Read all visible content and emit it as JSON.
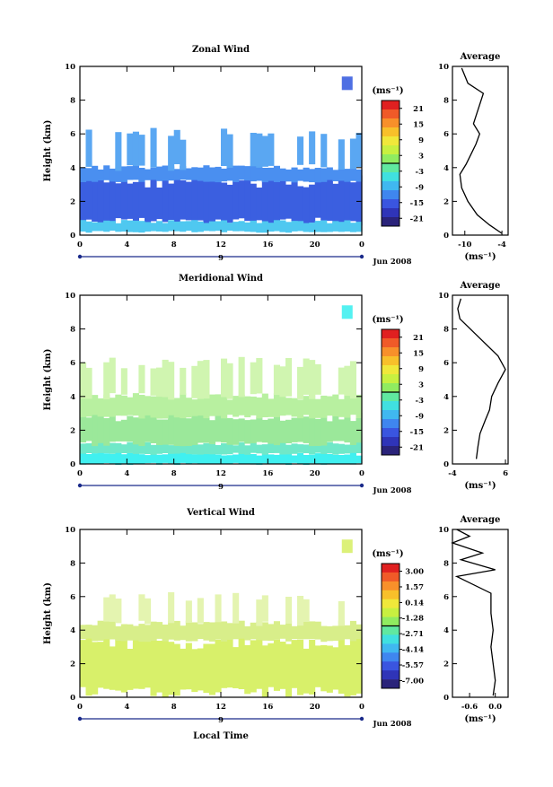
{
  "chart_data": [
    {
      "type": "heatmap",
      "title": "Zonal Wind",
      "ylabel": "Height (km)",
      "yticks": [
        "0",
        "2",
        "4",
        "6",
        "8",
        "10"
      ],
      "xticks": [
        "0",
        "4",
        "8",
        "12",
        "16",
        "20",
        "0"
      ],
      "xlim": [
        0,
        24
      ],
      "ylim": [
        0,
        10
      ],
      "date_tick": "9",
      "date_label": "Jun 2008",
      "colorbar_unit": "(ms⁻¹)",
      "colorbar_labels": [
        "21",
        "15",
        "9",
        "3",
        "-3",
        "-9",
        "-15",
        "-21"
      ],
      "colorbar_range": [
        -24,
        24
      ],
      "layers": [
        {
          "y0": 0.8,
          "y1": 3.2,
          "value": -15,
          "color": "#3b5fe0"
        },
        {
          "y0": 3.2,
          "y1": 4.0,
          "value": -9,
          "color": "#4a8ff0"
        },
        {
          "y0": 0.2,
          "y1": 0.8,
          "value": -3,
          "color": "#4fc8f0"
        },
        {
          "y0": 4.0,
          "y1": 6.0,
          "value": -9,
          "color": "#5aa7f2"
        }
      ],
      "average": {
        "title": "Average",
        "xticks": [
          "-10",
          "-4"
        ],
        "xlim": [
          -12,
          -3
        ],
        "xunit": "(ms⁻¹)",
        "profile": [
          [
            -4,
            0.1
          ],
          [
            -6,
            0.6
          ],
          [
            -8,
            1.2
          ],
          [
            -9.5,
            2.0
          ],
          [
            -10.5,
            2.8
          ],
          [
            -10.8,
            3.6
          ],
          [
            -9.8,
            4.2
          ],
          [
            -9.0,
            4.8
          ],
          [
            -8.2,
            5.4
          ],
          [
            -7.6,
            6.0
          ],
          [
            -8.6,
            6.6
          ],
          [
            -7.0,
            8.4
          ],
          [
            -9.5,
            9.0
          ],
          [
            -10.5,
            9.9
          ]
        ]
      }
    },
    {
      "type": "heatmap",
      "title": "Meridional Wind",
      "ylabel": "Height (km)",
      "yticks": [
        "0",
        "2",
        "4",
        "6",
        "8",
        "10"
      ],
      "xticks": [
        "0",
        "4",
        "8",
        "12",
        "16",
        "20",
        "0"
      ],
      "xlim": [
        0,
        24
      ],
      "ylim": [
        0,
        10
      ],
      "date_tick": "9",
      "date_label": "Jun 2008",
      "colorbar_unit": "(ms⁻¹)",
      "colorbar_labels": [
        "21",
        "15",
        "9",
        "3",
        "-3",
        "-9",
        "-15",
        "-21"
      ],
      "colorbar_range": [
        -24,
        24
      ],
      "layers": [
        {
          "y0": 0.0,
          "y1": 0.6,
          "value": -3,
          "color": "#40f0f0"
        },
        {
          "y0": 0.6,
          "y1": 1.2,
          "value": 0,
          "color": "#70e8c8"
        },
        {
          "y0": 1.2,
          "y1": 2.8,
          "value": 4,
          "color": "#9be89a"
        },
        {
          "y0": 2.8,
          "y1": 4.0,
          "value": 5,
          "color": "#b8f0a0"
        },
        {
          "y0": 4.0,
          "y1": 6.0,
          "value": 6,
          "color": "#d0f5b0"
        }
      ],
      "average": {
        "title": "Average",
        "xticks": [
          "-4",
          "6"
        ],
        "xlim": [
          -4,
          6.5
        ],
        "xunit": "(ms⁻¹)",
        "profile": [
          [
            0.5,
            0.3
          ],
          [
            0.8,
            1.0
          ],
          [
            1.2,
            1.8
          ],
          [
            2.2,
            2.6
          ],
          [
            3.0,
            3.2
          ],
          [
            3.4,
            4.0
          ],
          [
            4.6,
            4.8
          ],
          [
            6.0,
            5.6
          ],
          [
            4.6,
            6.4
          ],
          [
            -2.6,
            8.6
          ],
          [
            -3.0,
            9.2
          ],
          [
            -2.4,
            9.8
          ]
        ]
      }
    },
    {
      "type": "heatmap",
      "title": "Vertical Wind",
      "xlabel": "Local Time",
      "ylabel": "Height (km)",
      "yticks": [
        "0",
        "2",
        "4",
        "6",
        "8",
        "10"
      ],
      "xticks": [
        "0",
        "4",
        "8",
        "12",
        "16",
        "20",
        "0"
      ],
      "xlim": [
        0,
        24
      ],
      "ylim": [
        0,
        10
      ],
      "date_tick": "9",
      "date_label": "Jun 2008",
      "colorbar_unit": "(ms⁻¹)",
      "colorbar_labels": [
        "3.00",
        "1.57",
        "0.14",
        "-1.28",
        "-2.71",
        "-4.14",
        "-5.57",
        "-7.00"
      ],
      "colorbar_range": [
        -7.7,
        3.7
      ],
      "layers": [
        {
          "y0": 0.3,
          "y1": 3.4,
          "value": 0.6,
          "color": "#d8f06a"
        },
        {
          "y0": 3.4,
          "y1": 4.4,
          "value": 0.3,
          "color": "#d8ee8a"
        },
        {
          "y0": 4.4,
          "y1": 6.0,
          "value": 0.1,
          "color": "#e4f4b0"
        }
      ],
      "average": {
        "title": "Average",
        "xticks": [
          "-0.6",
          "0.0"
        ],
        "xlim": [
          -1.0,
          0.3
        ],
        "xunit": "(ms⁻¹)",
        "profile": [
          [
            -0.05,
            0.1
          ],
          [
            0.0,
            1.0
          ],
          [
            -0.05,
            2.0
          ],
          [
            -0.1,
            3.0
          ],
          [
            -0.05,
            4.0
          ],
          [
            -0.1,
            5.0
          ],
          [
            -0.1,
            6.2
          ],
          [
            -0.9,
            7.2
          ],
          [
            0.0,
            7.6
          ],
          [
            -0.8,
            8.2
          ],
          [
            -0.3,
            8.6
          ],
          [
            -1.0,
            9.2
          ],
          [
            -0.6,
            9.6
          ],
          [
            -0.9,
            10.0
          ]
        ]
      }
    }
  ]
}
